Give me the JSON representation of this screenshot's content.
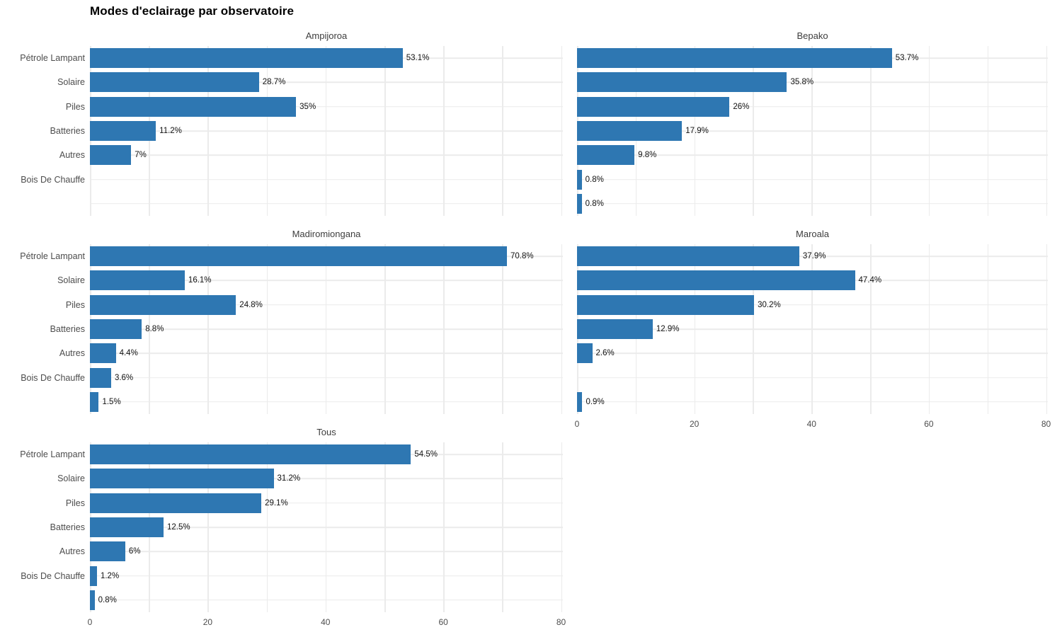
{
  "chart_data": {
    "type": "bar",
    "orientation": "horizontal",
    "title": "Modes d'eclairage par observatoire",
    "categories": [
      "Pétrole Lampant",
      "Solaire",
      "Piles",
      "Batteries",
      "Autres",
      "Bois De Chauffe",
      ""
    ],
    "x_ticks": [
      0,
      20,
      40,
      60,
      80
    ],
    "x_tick_labels": [
      "0",
      "20",
      "40",
      "60",
      "80"
    ],
    "xlim": [
      0,
      80
    ],
    "grid": "on",
    "legend_position": "none",
    "facets": [
      {
        "name": "Ampijoroa",
        "values": [
          53.1,
          28.7,
          35,
          11.2,
          7,
          null,
          null
        ],
        "bar_labels": [
          "53.1%",
          "28.7%",
          "35%",
          "11.2%",
          "7%",
          null,
          null
        ]
      },
      {
        "name": "Bepako",
        "values": [
          53.7,
          35.8,
          26,
          17.9,
          9.8,
          0.8,
          0.8
        ],
        "bar_labels": [
          "53.7%",
          "35.8%",
          "26%",
          "17.9%",
          "9.8%",
          "0.8%",
          "0.8%"
        ]
      },
      {
        "name": "Madiromiongana",
        "values": [
          70.8,
          16.1,
          24.8,
          8.8,
          4.4,
          3.6,
          1.5
        ],
        "bar_labels": [
          "70.8%",
          "16.1%",
          "24.8%",
          "8.8%",
          "4.4%",
          "3.6%",
          "1.5%"
        ]
      },
      {
        "name": "Maroala",
        "values": [
          37.9,
          47.4,
          30.2,
          12.9,
          2.6,
          null,
          0.9
        ],
        "bar_labels": [
          "37.9%",
          "47.4%",
          "30.2%",
          "12.9%",
          "2.6%",
          null,
          "0.9%"
        ]
      },
      {
        "name": "Tous",
        "values": [
          54.5,
          31.2,
          29.1,
          12.5,
          6,
          1.2,
          0.8
        ],
        "bar_labels": [
          "54.5%",
          "31.2%",
          "29.1%",
          "12.5%",
          "6%",
          "1.2%",
          "0.8%"
        ]
      }
    ],
    "colors": {
      "bar": "#2e77b2",
      "grid": "#ebebeb",
      "axis_text": "#4d4d4d",
      "facet_title": "#3d3d3d",
      "bar_label": "#111111",
      "background": "#ffffff"
    }
  }
}
